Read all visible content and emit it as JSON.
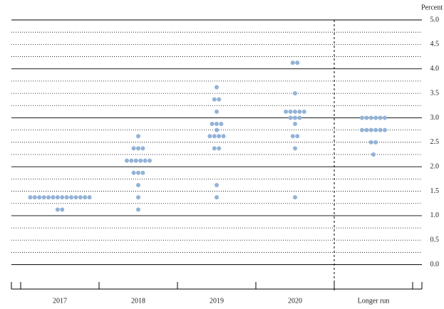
{
  "chart_data": {
    "type": "dot",
    "y_axis_label": "Percent",
    "categories": [
      "2017",
      "2018",
      "2019",
      "2020",
      "Longer run"
    ],
    "color": "#93b3d6",
    "values": [
      [
        1.125,
        1.125,
        1.375,
        1.375,
        1.375,
        1.375,
        1.375,
        1.375,
        1.375,
        1.375,
        1.375,
        1.375,
        1.375,
        1.375,
        1.375,
        1.375
      ],
      [
        1.125,
        1.375,
        1.625,
        1.875,
        1.875,
        1.875,
        2.125,
        2.125,
        2.125,
        2.125,
        2.125,
        2.125,
        2.375,
        2.375,
        2.375,
        2.625
      ],
      [
        1.375,
        1.625,
        2.375,
        2.375,
        2.625,
        2.625,
        2.625,
        2.625,
        2.75,
        2.875,
        2.875,
        2.875,
        3.125,
        3.375,
        3.375,
        3.625
      ],
      [
        1.375,
        2.375,
        2.625,
        2.625,
        2.875,
        3.0,
        3.0,
        3.0,
        3.125,
        3.125,
        3.125,
        3.125,
        3.125,
        3.5,
        4.125,
        4.125
      ],
      [
        2.25,
        2.5,
        2.5,
        2.75,
        2.75,
        2.75,
        2.75,
        2.75,
        2.75,
        3.0,
        3.0,
        3.0,
        3.0,
        3.0,
        3.0
      ]
    ],
    "ylim": [
      -0.5,
      5
    ],
    "yticks": [
      {
        "value": 0,
        "label": "0.0"
      },
      0.5,
      {
        "value": 1,
        "label": "1.0"
      },
      1.5,
      {
        "value": 2,
        "label": "2.0"
      },
      2.5,
      {
        "value": 3,
        "label": "3.0"
      },
      3.5,
      {
        "value": 4,
        "label": "4.0"
      },
      4.5,
      {
        "value": 5,
        "label": "5.0"
      }
    ],
    "minor_yticks": [
      0.25,
      0.75,
      1.25,
      1.75,
      2.25,
      2.75,
      3.25,
      3.75,
      4.25,
      4.75
    ],
    "grid": true
  }
}
